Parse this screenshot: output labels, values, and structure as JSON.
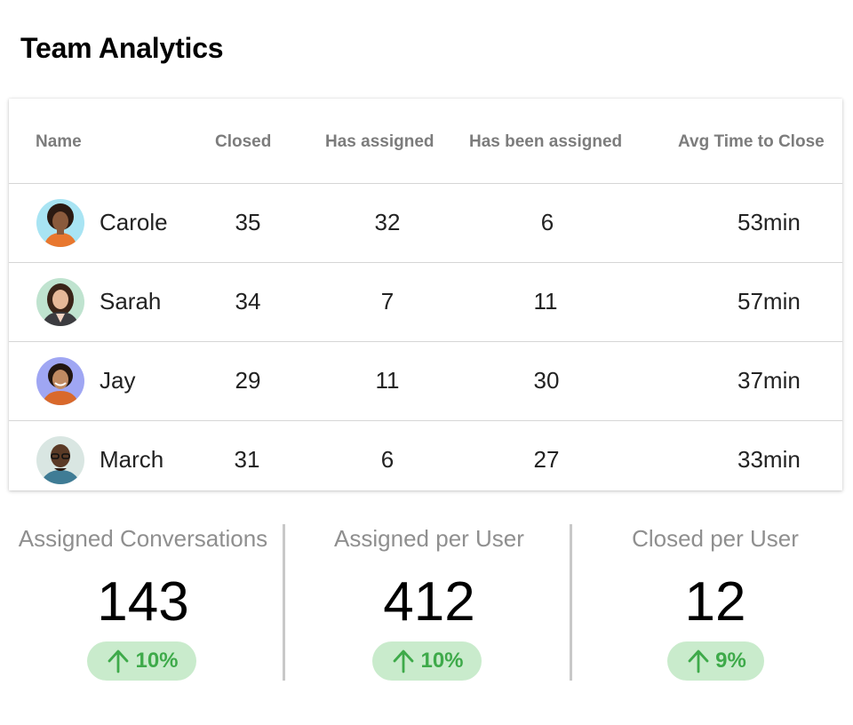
{
  "page": {
    "title": "Team Analytics"
  },
  "table": {
    "columns": [
      "Name",
      "Closed",
      "Has assigned",
      "Has been assigned",
      "Avg Time to Close"
    ],
    "rows": [
      {
        "name": "Carole",
        "closed": "35",
        "has_assigned": "32",
        "has_been_assigned": "6",
        "avg_time": "53min"
      },
      {
        "name": "Sarah",
        "closed": "34",
        "has_assigned": "7",
        "has_been_assigned": "11",
        "avg_time": "57min"
      },
      {
        "name": "Jay",
        "closed": "29",
        "has_assigned": "11",
        "has_been_assigned": "30",
        "avg_time": "37min"
      },
      {
        "name": "March",
        "closed": "31",
        "has_assigned": "6",
        "has_been_assigned": "27",
        "avg_time": "33min"
      }
    ]
  },
  "stats": [
    {
      "label": "Assigned Conversations",
      "value": "143",
      "change": "10%",
      "icon": "arrow-up-icon"
    },
    {
      "label": "Assigned per User",
      "value": "412",
      "change": "10%",
      "icon": "arrow-up-icon"
    },
    {
      "label": "Closed per User",
      "value": "12",
      "change": "9%",
      "icon": "arrow-up-icon"
    }
  ],
  "colors": {
    "header_text": "#7c7c7c",
    "badge_bg": "#c9ebcc",
    "badge_text": "#3eaa4a",
    "stat_label": "#8f8f8f"
  }
}
